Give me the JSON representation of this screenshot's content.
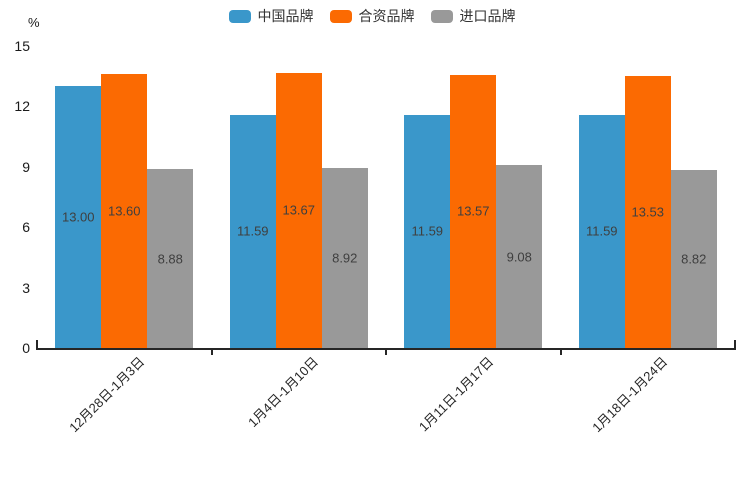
{
  "chart_data": {
    "type": "bar",
    "title": "",
    "xlabel": "",
    "ylabel": "%",
    "unit": "%",
    "categories": [
      "12月28日-1月3日",
      "1月4日-1月10日",
      "1月11日-1月17日",
      "1月18日-1月24日"
    ],
    "series": [
      {
        "name": "中国品牌",
        "color": "#3A97CA",
        "values": [
          13.0,
          11.59,
          11.59,
          11.59
        ],
        "labels": [
          "13.00",
          "11.59",
          "11.59",
          "11.59"
        ]
      },
      {
        "name": "合资品牌",
        "color": "#FB6A02",
        "values": [
          13.6,
          13.67,
          13.57,
          13.53
        ],
        "labels": [
          "13.60",
          "13.67",
          "13.57",
          "13.53"
        ]
      },
      {
        "name": "进口品牌",
        "color": "#999999",
        "values": [
          8.88,
          8.92,
          9.08,
          8.82
        ],
        "labels": [
          "8.88",
          "8.92",
          "9.08",
          "8.82"
        ]
      }
    ],
    "yticks": [
      0,
      3,
      6,
      9,
      12,
      15
    ],
    "ylim": [
      0,
      15
    ],
    "legend_position": "top",
    "grid": false,
    "axis_color": "#262626",
    "value_label_color": "#3F3F3F",
    "tick_label_color": "#1a1a1a",
    "background_color": "#ffffff"
  }
}
